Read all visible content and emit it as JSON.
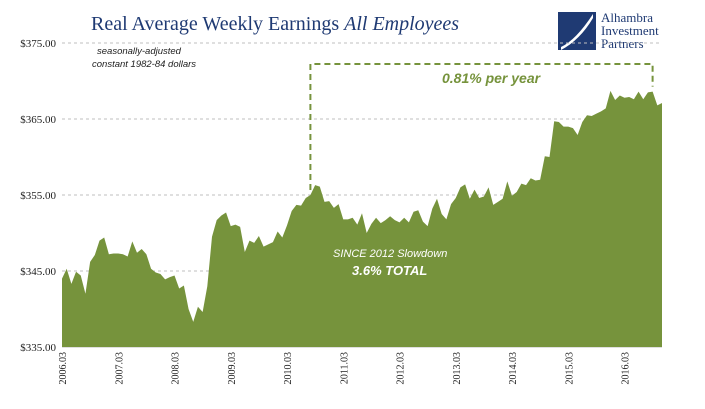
{
  "title_main": "Real Average Weekly Earnings",
  "title_italic": "All Employees",
  "logo": {
    "line1": "Alhambra",
    "line2": "Investment",
    "line3": "Partners"
  },
  "note": {
    "line1": "seasonally-adjusted",
    "line2": "constant 1982-84 dollars"
  },
  "annotations": {
    "rate": "0.81% per year",
    "since": "SINCE 2012 Slowdown",
    "total": "3.6% TOTAL"
  },
  "colors": {
    "area": "#76933c",
    "title": "#1f3a73",
    "grid": "#bfbfbf"
  },
  "chart_data": {
    "type": "area",
    "ylim": [
      335,
      375
    ],
    "yticks": [
      335,
      345,
      355,
      365,
      375
    ],
    "ytick_labels": [
      "$335.00",
      "$345.00",
      "$355.00",
      "$365.00",
      "$375.00"
    ],
    "xtick_labels": [
      "2006.03",
      "2007.03",
      "2008.03",
      "2009.03",
      "2010.03",
      "2011.03",
      "2012.03",
      "2013.03",
      "2014.03",
      "2015.03",
      "2016.03"
    ],
    "grid": true,
    "bracket_start": "2010.08",
    "bracket_end": "2016.09",
    "start": "2006.03",
    "values": [
      344.0,
      345.3,
      343.3,
      344.9,
      344.4,
      342.0,
      346.2,
      347.1,
      349.0,
      349.4,
      347.2,
      347.3,
      347.3,
      347.2,
      346.9,
      348.9,
      347.4,
      347.9,
      347.2,
      345.3,
      344.8,
      344.6,
      343.9,
      344.2,
      344.4,
      342.7,
      343.1,
      340.0,
      338.3,
      340.3,
      339.6,
      343.0,
      349.5,
      351.7,
      352.3,
      352.7,
      350.9,
      351.1,
      350.8,
      347.5,
      349.0,
      348.7,
      349.6,
      348.2,
      348.5,
      348.8,
      350.2,
      349.4,
      351.0,
      352.9,
      353.7,
      353.6,
      354.6,
      355.0,
      356.3,
      356.1,
      354.1,
      354.2,
      353.3,
      353.8,
      351.8,
      351.8,
      352.0,
      351.1,
      352.6,
      350.0,
      351.2,
      352.0,
      351.3,
      351.7,
      352.2,
      351.7,
      351.4,
      352.0,
      351.4,
      352.8,
      353.0,
      351.5,
      350.9,
      353.2,
      354.5,
      352.5,
      351.8,
      353.8,
      354.6,
      356.0,
      356.4,
      354.5,
      355.7,
      354.6,
      354.8,
      356.0,
      353.7,
      354.1,
      354.5,
      356.8,
      354.9,
      355.4,
      356.5,
      356.3,
      357.2,
      356.9,
      357.0,
      360.1,
      360.0,
      364.7,
      364.6,
      364.0,
      364.0,
      363.8,
      362.9,
      364.6,
      365.5,
      365.4,
      365.7,
      366.0,
      366.4,
      368.7,
      367.5,
      368.1,
      367.8,
      367.9,
      367.6,
      368.6,
      367.6,
      368.5,
      368.6,
      366.8,
      367.1
    ]
  }
}
